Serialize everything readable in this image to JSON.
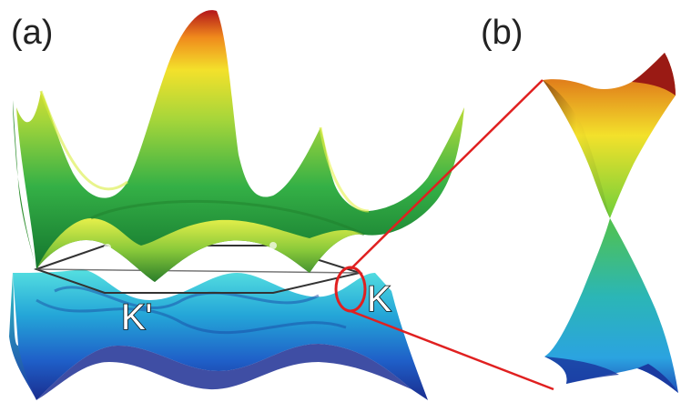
{
  "figure": {
    "panel_a": {
      "label": "(a)"
    },
    "panel_b": {
      "label": "(b)"
    },
    "points": {
      "k_prime": "K'",
      "k": "K"
    },
    "colors": {
      "upper_band_low": "#2fa83c",
      "upper_band_mid": "#d7e23a",
      "upper_band_high": "#d8261c",
      "lower_band_high": "#3fd0d8",
      "lower_band_low": "#1d3bb0",
      "zoom_callout": "#e02020",
      "brillouin_zone": "#333333"
    }
  }
}
